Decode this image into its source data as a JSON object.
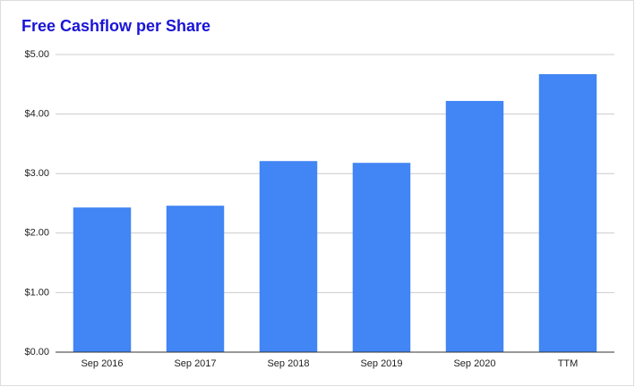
{
  "chart_data": {
    "type": "bar",
    "title": "Free Cashflow per Share",
    "categories": [
      "Sep 2016",
      "Sep 2017",
      "Sep 2018",
      "Sep 2019",
      "Sep 2020",
      "TTM"
    ],
    "values": [
      2.43,
      2.46,
      3.21,
      3.18,
      4.22,
      4.67
    ],
    "color": "#4285f4",
    "ylim": [
      0,
      5
    ],
    "yticks": [
      {
        "value": 0,
        "label": "$0.00"
      },
      {
        "value": 1,
        "label": "$1.00"
      },
      {
        "value": 2,
        "label": "$2.00"
      },
      {
        "value": 3,
        "label": "$3.00"
      },
      {
        "value": 4,
        "label": "$4.00"
      },
      {
        "value": 5,
        "label": "$5.00"
      }
    ],
    "grid": true
  }
}
